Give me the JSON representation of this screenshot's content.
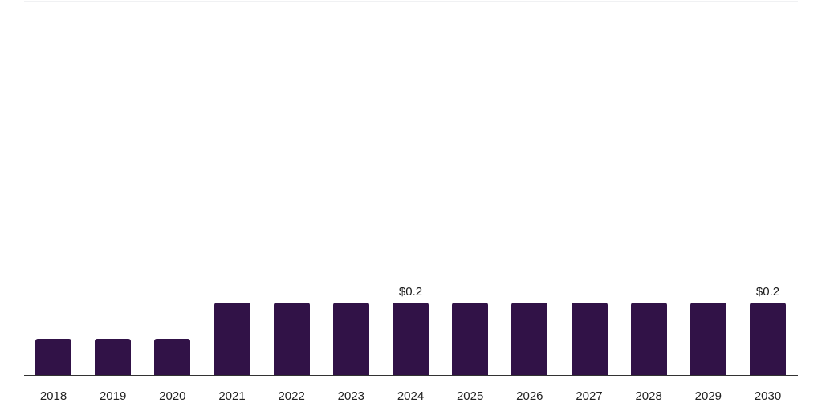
{
  "chart": {
    "background": "#ffffff",
    "bar_color": "#311247",
    "axis_color": "#333333",
    "top_border_color": "#f0f1f3",
    "data_label_color": "#1a1a1a",
    "tick_label_color": "#222222"
  },
  "chart_data": {
    "type": "bar",
    "title": "",
    "xlabel": "",
    "ylabel": "",
    "categories": [
      "2018",
      "2019",
      "2020",
      "2021",
      "2022",
      "2023",
      "2024",
      "2025",
      "2026",
      "2027",
      "2028",
      "2029",
      "2030"
    ],
    "values": [
      0.1,
      0.1,
      0.1,
      0.2,
      0.2,
      0.2,
      0.2,
      0.2,
      0.2,
      0.2,
      0.2,
      0.2,
      0.2
    ],
    "data_labels": [
      "",
      "",
      "",
      "",
      "",
      "",
      "$0.2",
      "",
      "",
      "",
      "",
      "",
      "$0.2"
    ],
    "ylim": [
      0,
      1
    ],
    "grid": false,
    "legend": false
  }
}
